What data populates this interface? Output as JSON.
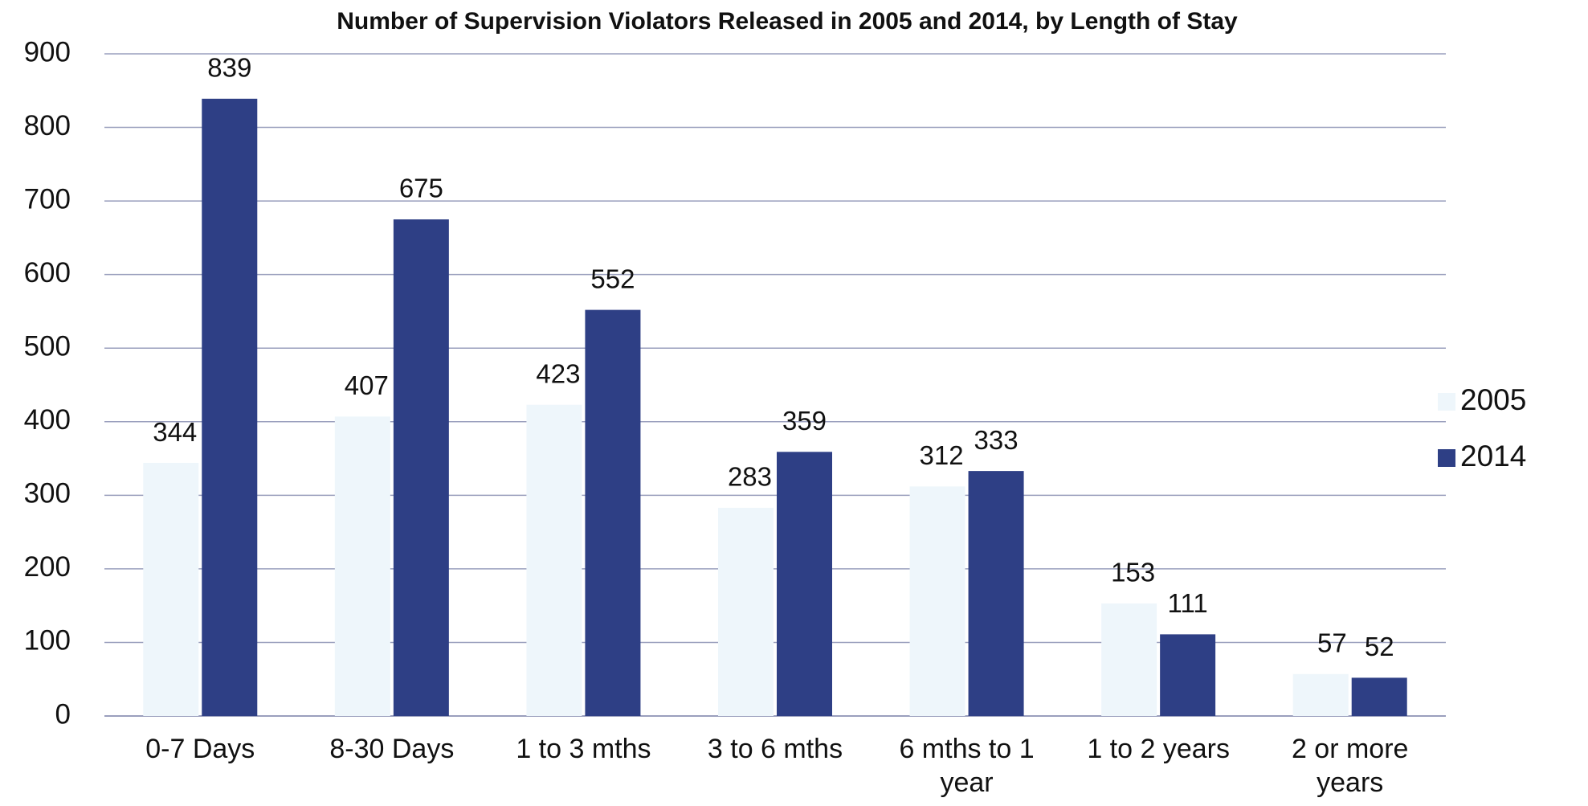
{
  "chart_data": {
    "type": "bar",
    "title": "Number of Supervision Violators Released in 2005 and 2014, by Length of Stay",
    "categories": [
      "0-7 Days",
      "8-30 Days",
      "1 to 3 mths",
      "3 to 6 mths",
      "6 mths to 1 year",
      "1 to 2 years",
      "2 or more years"
    ],
    "series": [
      {
        "name": "2005",
        "color": "#eef6fb",
        "values": [
          344,
          407,
          423,
          283,
          312,
          153,
          57
        ]
      },
      {
        "name": "2014",
        "color": "#2e3f85",
        "values": [
          839,
          675,
          552,
          359,
          333,
          111,
          52
        ]
      }
    ],
    "ylim": [
      0,
      900
    ],
    "yticks": [
      0,
      100,
      200,
      300,
      400,
      500,
      600,
      700,
      800,
      900
    ],
    "grid": true,
    "legend": "right"
  }
}
